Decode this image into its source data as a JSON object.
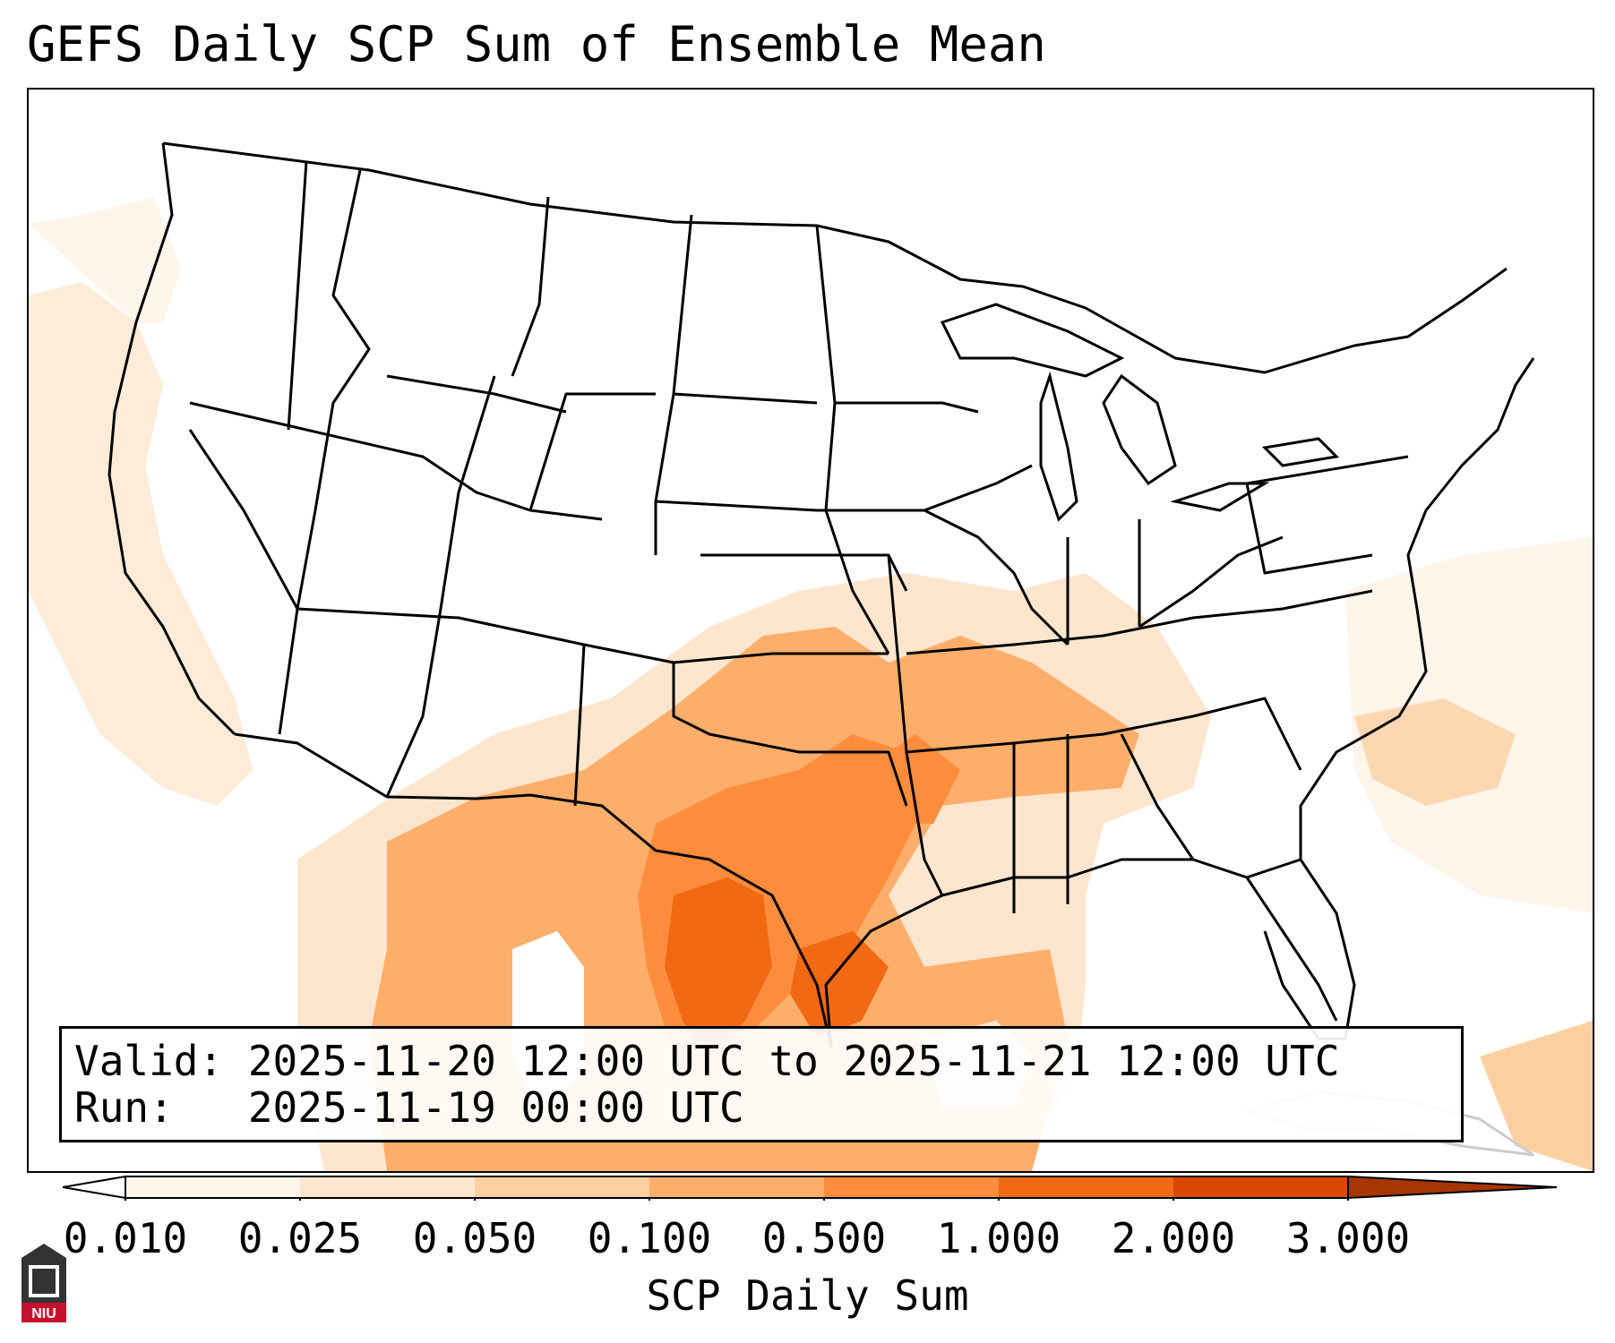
{
  "title": "GEFS Daily SCP Sum of Ensemble Mean",
  "info": {
    "valid_line": "Valid: 2025-11-20 12:00 UTC to 2025-11-21 12:00 UTC",
    "run_line": "Run:   2025-11-19 00:00 UTC"
  },
  "colorbar": {
    "label": "SCP Daily Sum",
    "ticks": [
      "0.010",
      "0.025",
      "0.050",
      "0.100",
      "0.500",
      "1.000",
      "2.000",
      "3.000"
    ],
    "colors": [
      "#fff5eb",
      "#fee6ce",
      "#fdd0a2",
      "#fdae6b",
      "#fd8d3c",
      "#f16913",
      "#d94801",
      "#a63603"
    ]
  },
  "logo": {
    "text": "NIU",
    "name": "niu-logo"
  }
}
